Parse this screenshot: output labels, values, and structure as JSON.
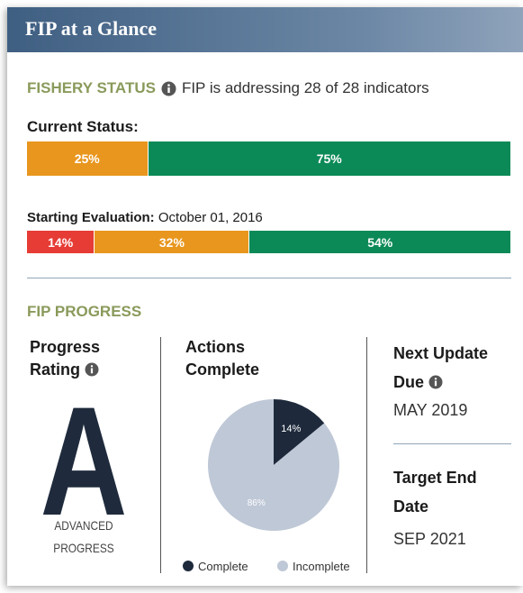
{
  "header": {
    "title": "FIP at a Glance"
  },
  "fishery_status": {
    "heading": "FISHERY STATUS",
    "summary": "FIP is addressing 28 of 28 indicators",
    "current": {
      "label": "Current Status:",
      "values": [
        25,
        75
      ],
      "value_labels": [
        "25%",
        "75%"
      ],
      "colors": [
        "#e8961e",
        "#0b8a57"
      ]
    },
    "starting": {
      "label": "Starting Evaluation:",
      "date": "October 01, 2016",
      "values": [
        14,
        32,
        54
      ],
      "value_labels": [
        "14%",
        "32%",
        "54%"
      ],
      "colors": [
        "#e63c35",
        "#e8961e",
        "#0b8a57"
      ]
    }
  },
  "progress": {
    "heading": "FIP PROGRESS",
    "rating": {
      "title": "Progress Rating",
      "grade": "A",
      "description": "ADVANCED PROGRESS"
    },
    "actions": {
      "title": "Actions Complete",
      "chart_data": {
        "type": "pie",
        "categories": [
          "Complete",
          "Incomplete"
        ],
        "values": [
          14,
          86
        ],
        "value_labels": [
          "14%",
          "86%"
        ],
        "colors": [
          "#1e2a3c",
          "#bfc8d6"
        ]
      }
    },
    "next_update": {
      "title": "Next Update Due",
      "date": "MAY 2019"
    },
    "target_end": {
      "title": "Target End Date",
      "date": "SEP 2021"
    }
  }
}
